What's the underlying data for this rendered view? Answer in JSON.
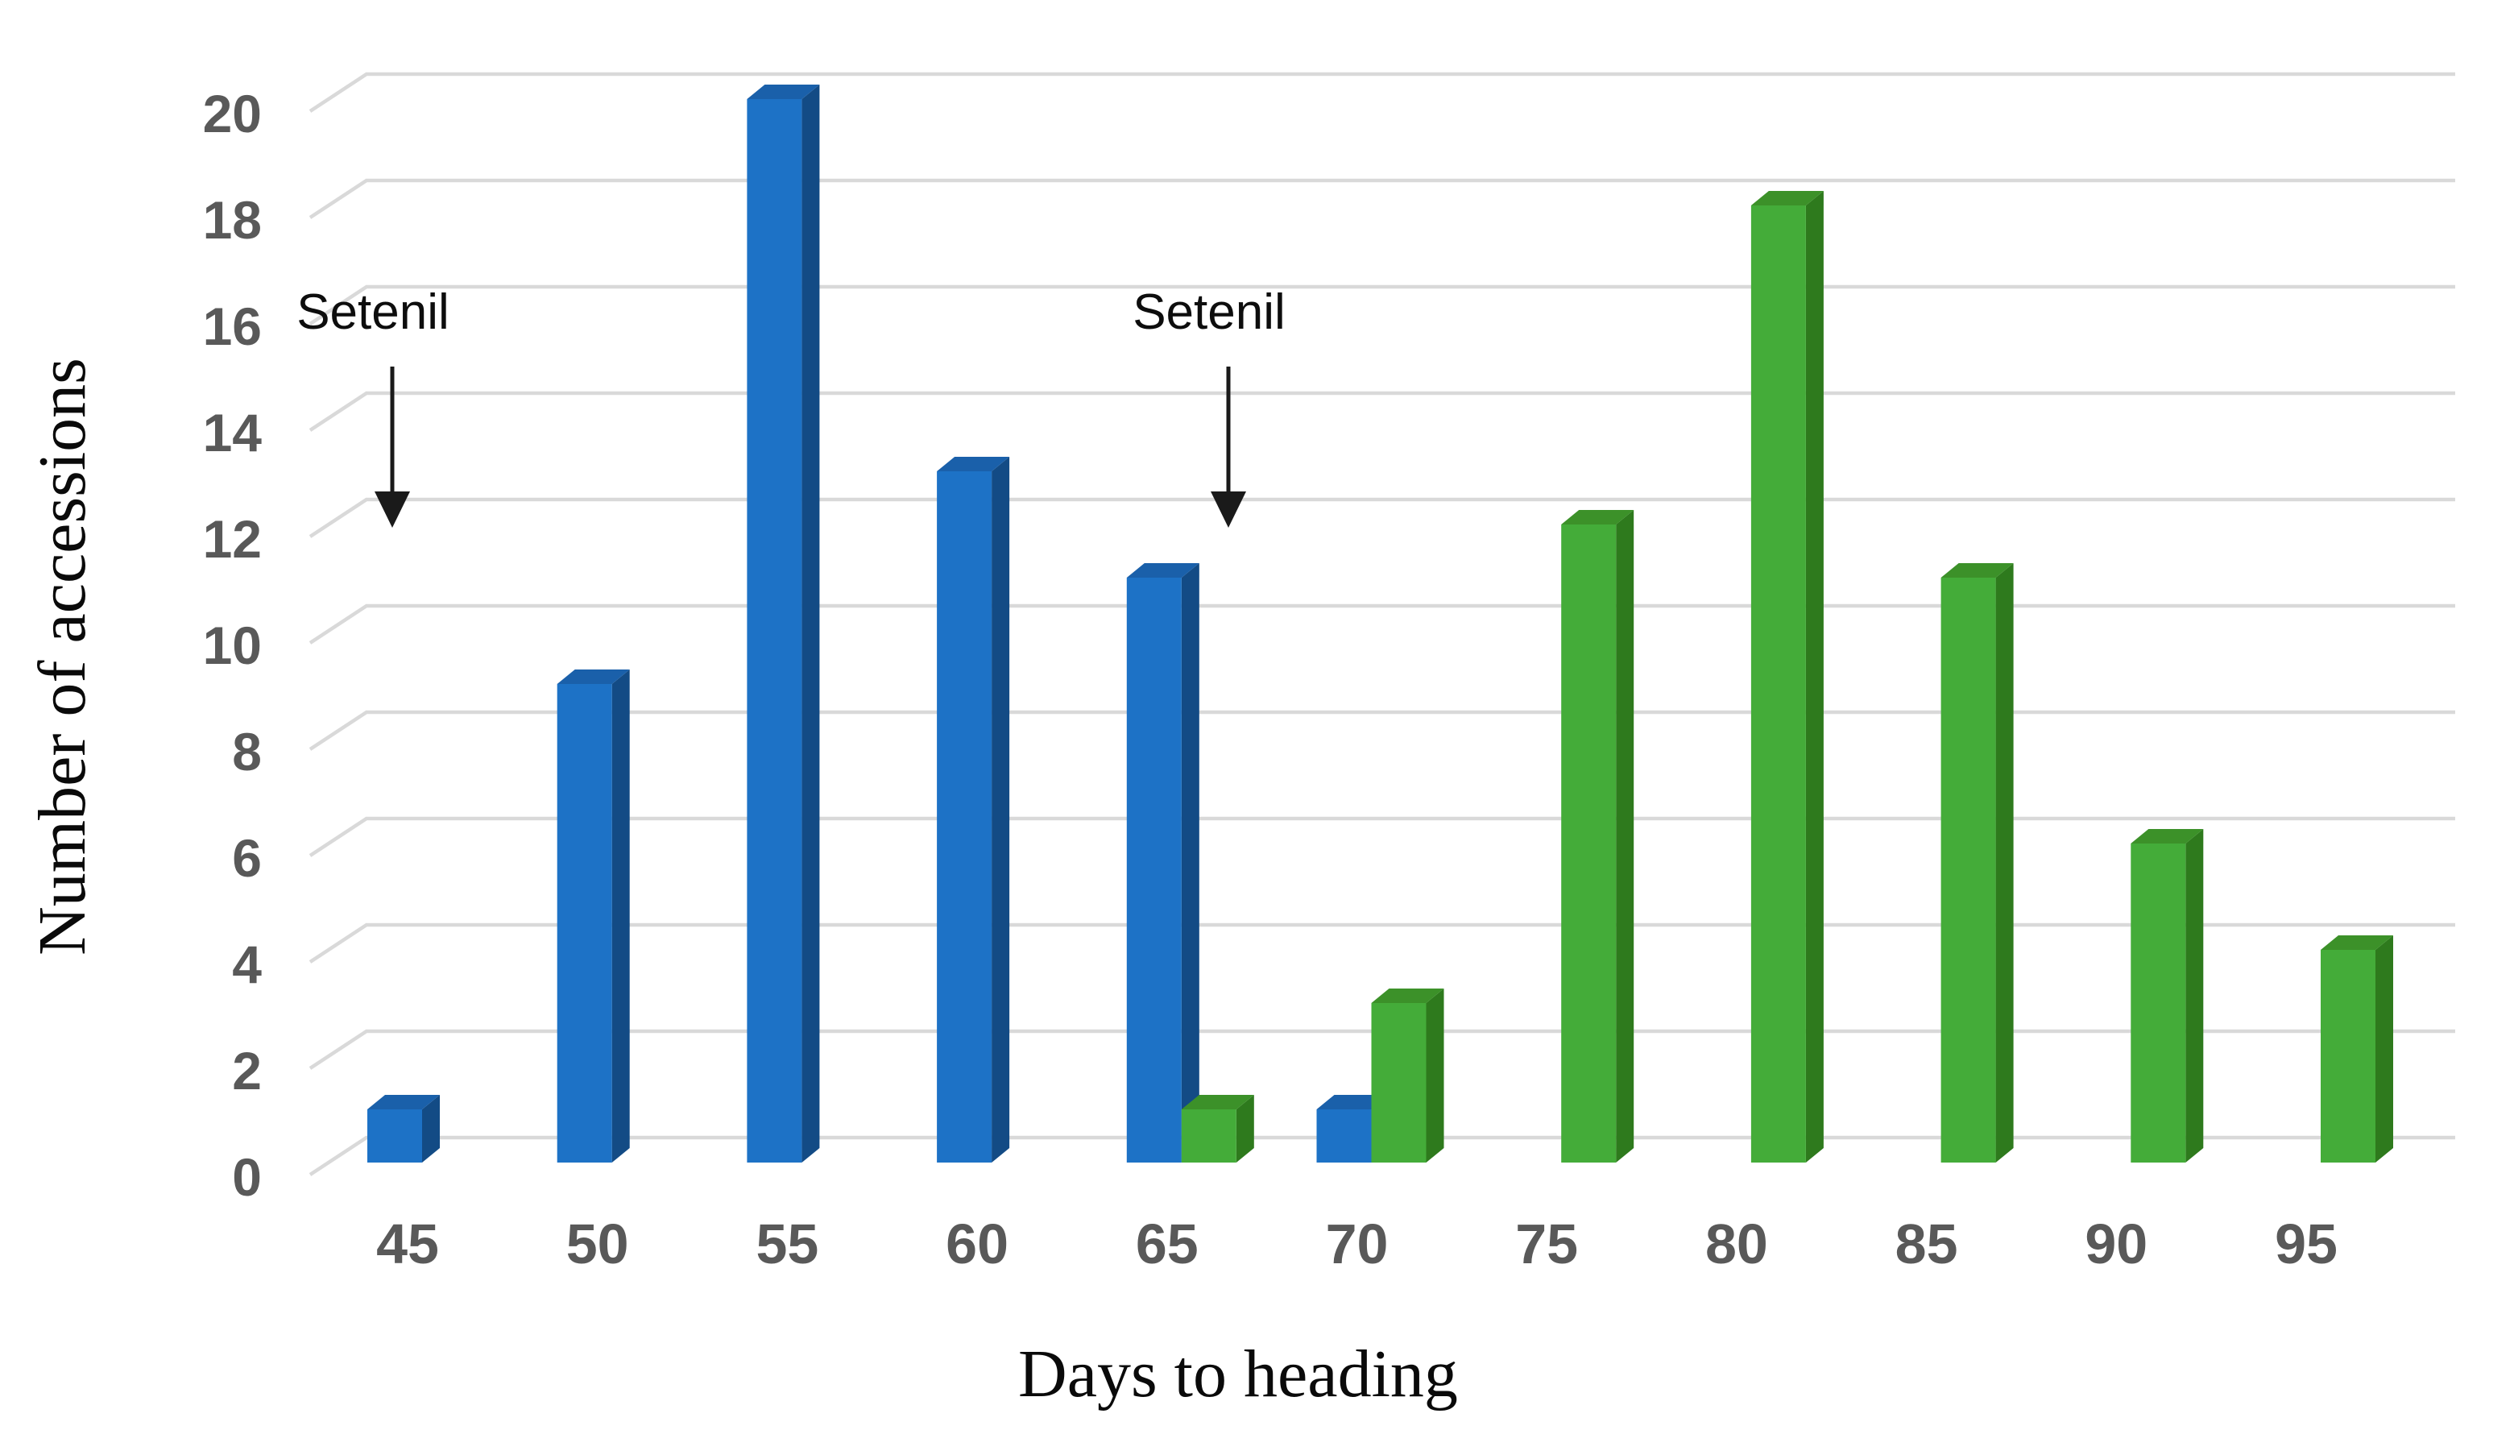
{
  "figure": {
    "background_color": "#ffffff"
  },
  "chart_data": {
    "type": "bar",
    "style": "3d-clustered-column",
    "title": "",
    "xlabel": "Days to heading",
    "ylabel": "Number of accessions",
    "categories": [
      "45",
      "50",
      "55",
      "60",
      "65",
      "70",
      "75",
      "80",
      "85",
      "90",
      "95"
    ],
    "series": [
      {
        "name": "blue",
        "values": [
          1,
          9,
          20,
          13,
          11,
          1,
          0,
          0,
          0,
          0,
          0
        ],
        "front_color": "#1D72C6",
        "side_color": "#134B85",
        "top_color": "#1A60AA"
      },
      {
        "name": "green",
        "values": [
          0,
          0,
          0,
          0,
          1,
          3,
          12,
          18,
          11,
          6,
          4
        ],
        "front_color": "#44AC39",
        "side_color": "#2E7A1D",
        "top_color": "#3C9129"
      }
    ],
    "ylim": [
      0,
      20
    ],
    "ytick_step": 2,
    "yticks": [
      "0",
      "2",
      "4",
      "6",
      "8",
      "10",
      "12",
      "14",
      "16",
      "18",
      "20"
    ],
    "grid": "horizontal",
    "legend": "none",
    "gridline_color": "#D9D9D9",
    "tick_label_color": "#595959",
    "arrow_color": "#1a1a1a",
    "annotations": [
      {
        "text": "Setenil",
        "points_to_series": "blue",
        "points_to_category": "45"
      },
      {
        "text": "Setenil",
        "points_to_series": "green",
        "points_to_category": "65"
      }
    ]
  }
}
